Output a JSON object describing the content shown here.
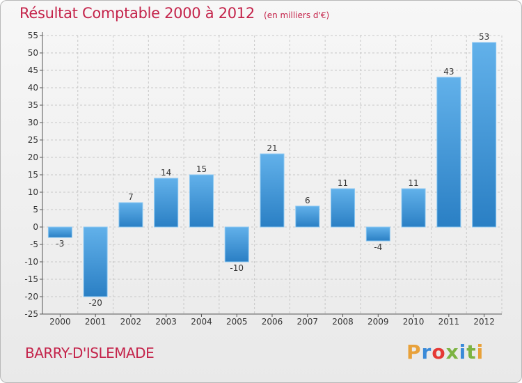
{
  "header": {
    "title": "Résultat Comptable 2000 à 2012",
    "subtitle": "(en milliers d'€)"
  },
  "footer": {
    "commune": "BARRY-D'ISLEMADE",
    "brand": "Proxiti",
    "brand_colors": [
      "#e8a13a",
      "#3a8ad8",
      "#e53935",
      "#7cb342",
      "#3a8ad8",
      "#7cb342",
      "#e8a13a"
    ]
  },
  "colors": {
    "bar_top": "#62b1ea",
    "bar_bottom": "#2a7fc4",
    "grid": "#c8c8c8",
    "axis": "#555555"
  },
  "chart_data": {
    "type": "bar",
    "title": "Résultat Comptable 2000 à 2012",
    "subtitle": "(en milliers d'€)",
    "categories": [
      "2000",
      "2001",
      "2002",
      "2003",
      "2004",
      "2005",
      "2006",
      "2007",
      "2008",
      "2009",
      "2010",
      "2011",
      "2012"
    ],
    "values": [
      -3,
      -20,
      7,
      14,
      15,
      -10,
      21,
      6,
      11,
      -4,
      11,
      43,
      53
    ],
    "value_labels": [
      "-3",
      "-20",
      "7",
      "14",
      "15",
      "-10",
      "21",
      "6",
      "11",
      "-4",
      "11",
      "43",
      "53"
    ],
    "yticks": [
      "55",
      "50",
      "45",
      "40",
      "35",
      "30",
      "25",
      "20",
      "15",
      "10",
      "5",
      "0",
      "-5",
      "-10",
      "-15",
      "-20",
      "-25"
    ],
    "ylim": [
      -25,
      55
    ],
    "ytick_step": 5,
    "grid": true,
    "legend": "none"
  }
}
